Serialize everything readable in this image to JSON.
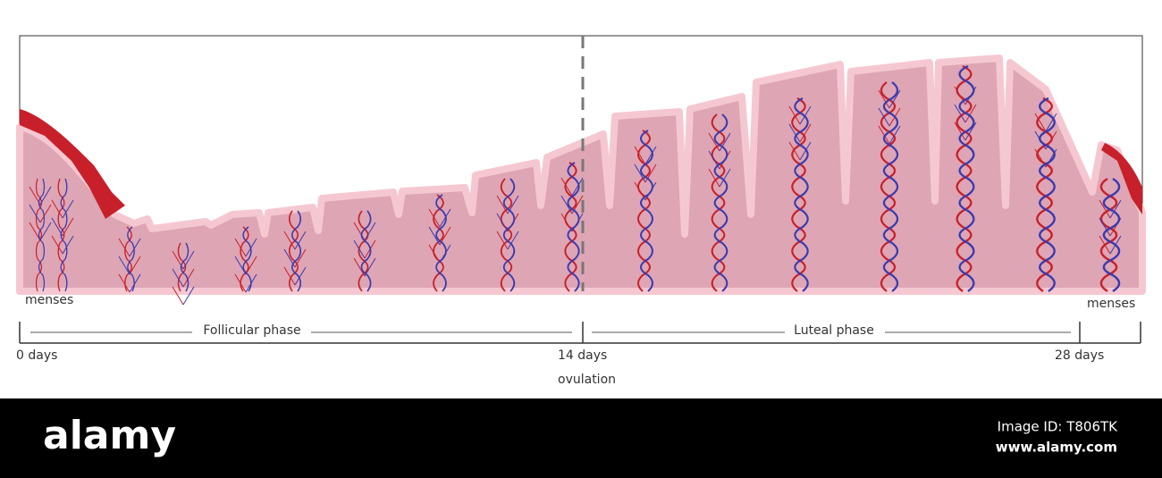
{
  "diagram": {
    "labels": {
      "menses_left": "menses",
      "menses_right": "menses",
      "ovulation": "ovulation"
    },
    "timeline": {
      "phases": [
        "Follicular phase",
        "Luteal phase"
      ],
      "days": [
        "0 days",
        "14 days",
        "28 days"
      ]
    },
    "footer": {
      "brand": "alamy",
      "image_id": "Image ID: T806TK",
      "url": "www.alamy.com"
    }
  }
}
